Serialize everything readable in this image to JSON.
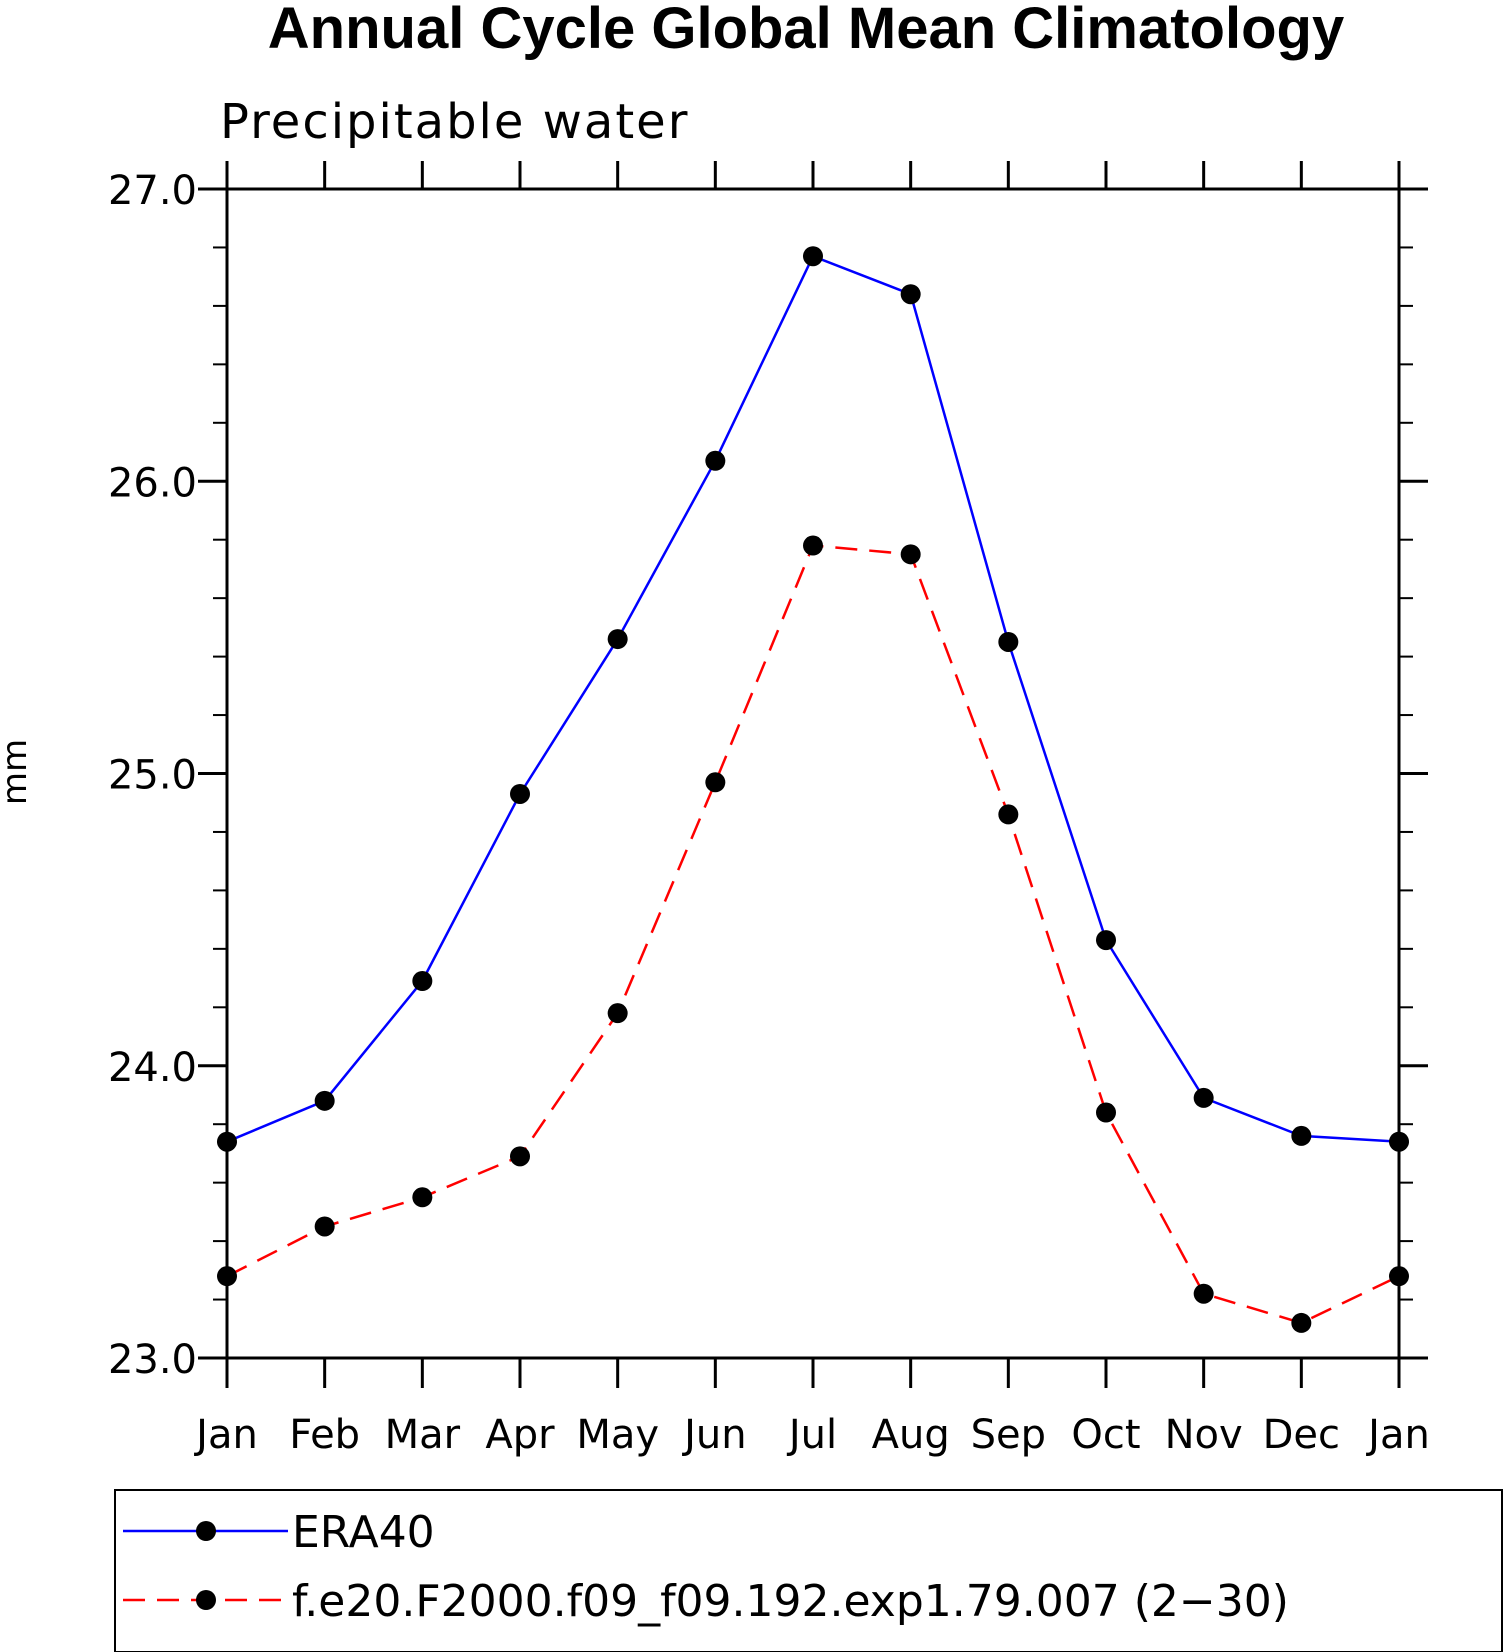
{
  "chart_data": {
    "type": "line",
    "title": "Annual Cycle Global Mean Climatology",
    "subtitle": "Precipitable water",
    "xlabel": "",
    "ylabel": "mm",
    "categories": [
      "Jan",
      "Feb",
      "Mar",
      "Apr",
      "May",
      "Jun",
      "Jul",
      "Aug",
      "Sep",
      "Oct",
      "Nov",
      "Dec",
      "Jan"
    ],
    "ylim": [
      23.0,
      27.0
    ],
    "y_major_ticks": [
      23.0,
      24.0,
      25.0,
      26.0,
      27.0
    ],
    "y_tick_labels": [
      "23.0",
      "24.0",
      "25.0",
      "26.0",
      "27.0"
    ],
    "y_minor_step": 0.2,
    "grid": false,
    "legend_position": "bottom",
    "series": [
      {
        "name": "ERA40",
        "color": "#0000ff",
        "dash": "solid",
        "marker": "filled-circle",
        "values": [
          23.74,
          23.88,
          24.29,
          24.93,
          25.46,
          26.07,
          26.77,
          26.64,
          25.45,
          24.43,
          23.89,
          23.76,
          23.74
        ]
      },
      {
        "name": "f.e20.F2000.f09_f09.192.exp1.79.007 (2−30)",
        "color": "#ff0000",
        "dash": "dashed",
        "marker": "filled-circle",
        "values": [
          23.28,
          23.45,
          23.55,
          23.69,
          24.18,
          24.97,
          25.78,
          25.75,
          24.86,
          23.84,
          23.22,
          23.12,
          23.28
        ]
      }
    ]
  }
}
